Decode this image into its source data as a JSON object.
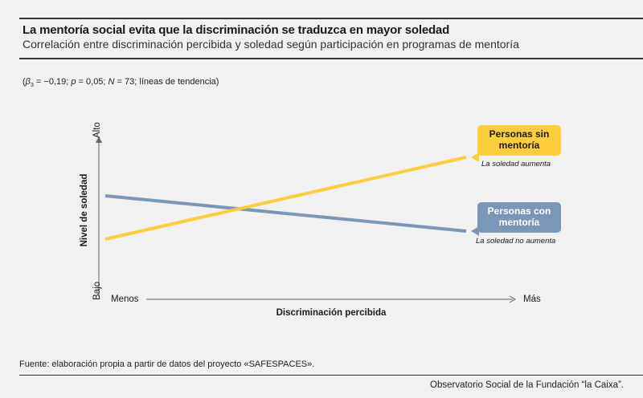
{
  "header": {
    "title": "La mentoría social evita que la discriminación se traduzca en mayor soledad",
    "subtitle": "Correlación entre discriminación percibida y soledad según participación en programas de mentoría"
  },
  "stats": {
    "beta_symbol": "β",
    "beta_sub": "3",
    "beta_value": " = −0,19; ",
    "p_symbol": "p",
    "p_value": " = 0,05; ",
    "n_symbol": "N",
    "n_value": " = 73; líneas de tendencia)",
    "open_paren": "("
  },
  "source": "Fuente: elaboración propia a partir de datos del proyecto «SAFESPACES».",
  "credit": "Observatorio Social de la Fundación “la Caixa”.",
  "colors": {
    "with_mentoring": "#7a96b8",
    "without_mentoring": "#fdcd3c"
  },
  "chart_data": {
    "type": "line",
    "xlabel": "Discriminación percibida",
    "ylabel": "Nivel de soledad",
    "x_tick_labels": [
      "Menos",
      "Más"
    ],
    "y_tick_labels": [
      "Bajo",
      "Alto"
    ],
    "x": [
      0,
      1
    ],
    "ylim": [
      0,
      1
    ],
    "series": [
      {
        "name": "Personas sin mentoría",
        "values": [
          0.36,
          0.87
        ],
        "color": "#fdcd3c",
        "note": "La soledad aumenta"
      },
      {
        "name": "Personas con mentoría",
        "values": [
          0.63,
          0.41
        ],
        "color": "#7a96b8",
        "note": "La soledad no aumenta"
      }
    ]
  }
}
